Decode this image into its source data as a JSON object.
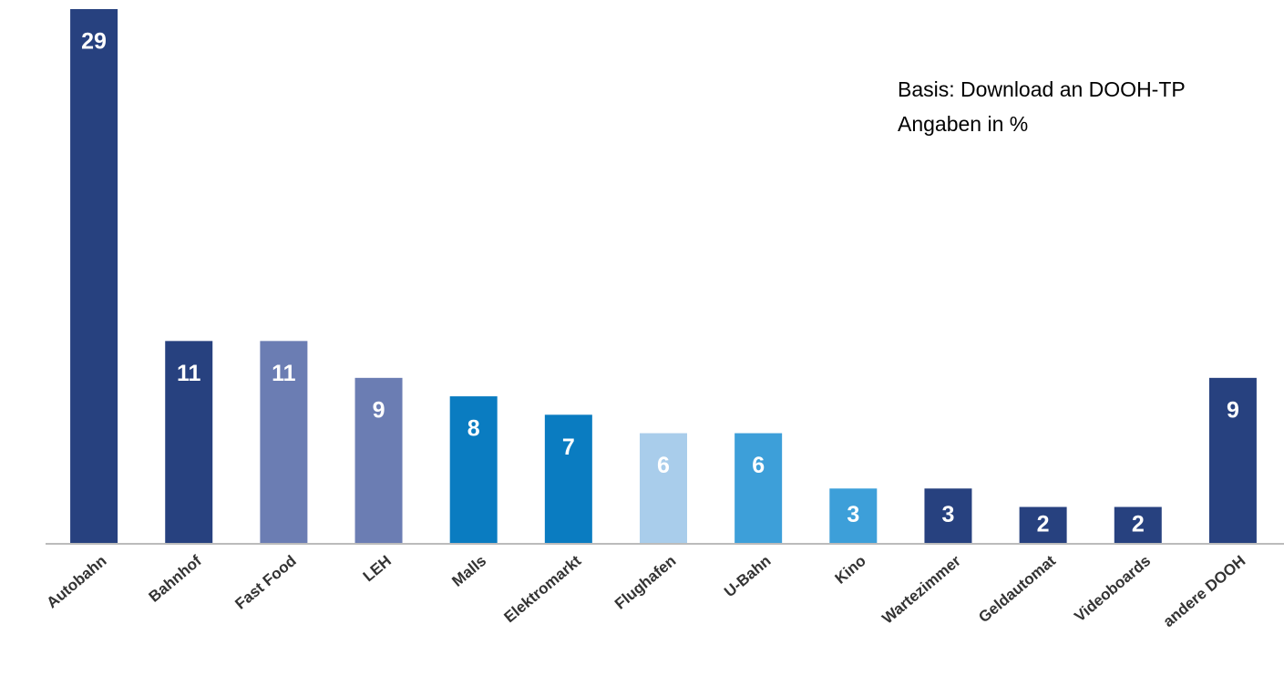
{
  "chart_data": {
    "type": "bar",
    "annotations": [
      "Basis: Download an DOOH-TP",
      "Angaben in %"
    ],
    "categories": [
      "Autobahn",
      "Bahnhof",
      "Fast Food",
      "LEH",
      "Malls",
      "Elektromarkt",
      "Flughafen",
      "U-Bahn",
      "Kino",
      "Wartezimmer",
      "Geldautomat",
      "Videoboards",
      "andere DOOH"
    ],
    "values": [
      29,
      11,
      11,
      9,
      8,
      7,
      6,
      6,
      3,
      3,
      2,
      2,
      9
    ],
    "colors": [
      "#27417f",
      "#27417f",
      "#6b7db3",
      "#6b7db3",
      "#0a7cc1",
      "#0a7cc1",
      "#a9cdeb",
      "#3d9fd9",
      "#3d9fd9",
      "#27417f",
      "#27417f",
      "#27417f",
      "#27417f"
    ],
    "ylim": [
      0,
      29
    ]
  }
}
